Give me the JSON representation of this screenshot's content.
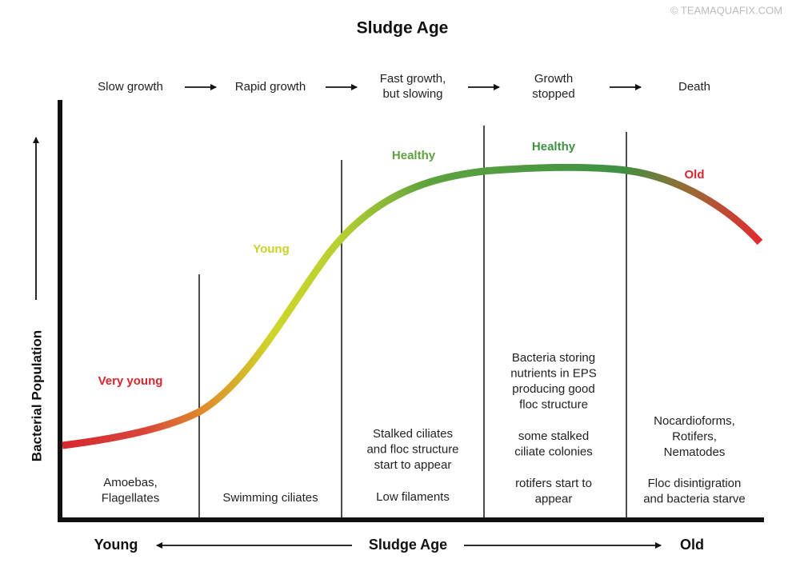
{
  "watermark": "© TEAMAQUAFIX.COM",
  "title": "Sludge Age",
  "y_axis_label": "Bacterial Population",
  "x_axis": {
    "left": "Young",
    "center": "Sludge Age",
    "right": "Old"
  },
  "stage_labels": [
    "Very young",
    "Young",
    "Healthy",
    "Healthy",
    "Old"
  ],
  "phases": [
    {
      "growth": [
        "Slow growth"
      ],
      "descriptions": [
        [
          "Amoebas,",
          "Flagellates"
        ]
      ]
    },
    {
      "growth": [
        "Rapid growth"
      ],
      "descriptions": [
        [
          "Swimming ciliates"
        ]
      ]
    },
    {
      "growth": [
        "Fast growth,",
        "but slowing"
      ],
      "descriptions": [
        [
          "Stalked ciliates",
          "and floc structure",
          "start to appear"
        ],
        [
          "Low filaments"
        ]
      ]
    },
    {
      "growth": [
        "Growth",
        "stopped"
      ],
      "descriptions": [
        [
          "Bacteria storing",
          "nutrients in EPS",
          "producing good",
          "floc structure"
        ],
        [
          "some stalked",
          "ciliate colonies"
        ],
        [
          "rotifers start to",
          "appear"
        ]
      ]
    },
    {
      "growth": [
        "Death"
      ],
      "descriptions": [
        [
          "Nocardioforms,",
          "Rotifers,",
          "Nematodes"
        ],
        [
          "Floc disintigration",
          "and bacteria starve"
        ]
      ]
    }
  ]
}
